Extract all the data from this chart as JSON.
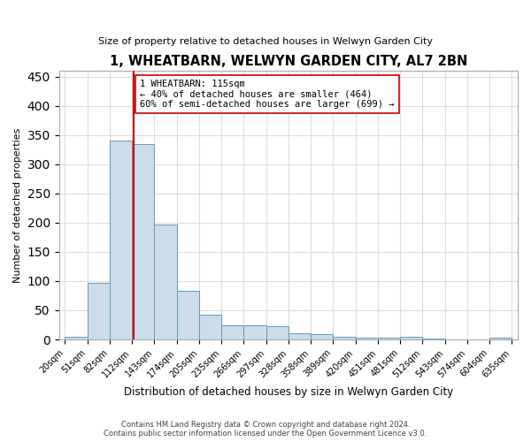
{
  "title": "1, WHEATBARN, WELWYN GARDEN CITY, AL7 2BN",
  "subtitle": "Size of property relative to detached houses in Welwyn Garden City",
  "xlabel": "Distribution of detached houses by size in Welwyn Garden City",
  "ylabel": "Number of detached properties",
  "footer_line1": "Contains HM Land Registry data © Crown copyright and database right 2024.",
  "footer_line2": "Contains public sector information licensed under the Open Government Licence v3.0.",
  "bar_edges": [
    20,
    51,
    82,
    112,
    143,
    174,
    205,
    235,
    266,
    297,
    328,
    358,
    389,
    420,
    451,
    481,
    512,
    543,
    574,
    604,
    635
  ],
  "bar_heights": [
    5,
    97,
    340,
    335,
    197,
    83,
    42,
    25,
    24,
    22,
    10,
    9,
    5,
    3,
    3,
    4,
    1,
    0,
    0,
    3
  ],
  "bar_color": "#ccdce8",
  "bar_edge_color": "#6699bb",
  "reference_line_x": 115,
  "reference_line_color": "#cc0000",
  "annotation_text": "1 WHEATBARN: 115sqm\n← 40% of detached houses are smaller (464)\n60% of semi-detached houses are larger (699) →",
  "annotation_box_color": "#ffffff",
  "annotation_box_edge_color": "#cc0000",
  "ylim": [
    0,
    460
  ],
  "yticks": [
    0,
    50,
    100,
    150,
    200,
    250,
    300,
    350,
    400,
    450
  ],
  "bg_color": "#ffffff",
  "plot_bg_color": "#ffffff",
  "grid_color": "#dddddd"
}
